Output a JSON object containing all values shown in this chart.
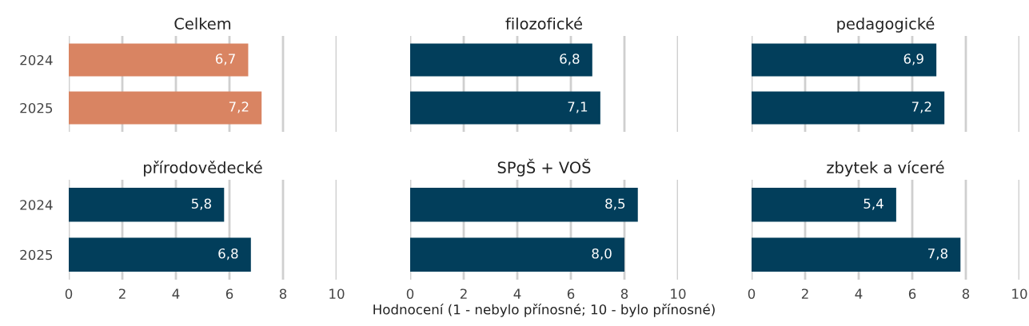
{
  "chart_data": [
    {
      "type": "bar",
      "orientation": "horizontal",
      "title": "Celkem",
      "categories": [
        "2024",
        "2025"
      ],
      "values": [
        6.7,
        7.2
      ],
      "value_labels": [
        "6,7",
        "7,2"
      ],
      "color": "#d98462",
      "xlim": [
        0,
        10
      ],
      "xticks": [
        0,
        2,
        4,
        6,
        8,
        10
      ],
      "grid": "x",
      "tick_labels": "y"
    },
    {
      "type": "bar",
      "orientation": "horizontal",
      "title": "filozofické",
      "categories": [
        "2024",
        "2025"
      ],
      "values": [
        6.8,
        7.1
      ],
      "value_labels": [
        "6,8",
        "7,1"
      ],
      "color": "#023e5b",
      "xlim": [
        0,
        10
      ],
      "xticks": [
        0,
        2,
        4,
        6,
        8,
        10
      ],
      "grid": "x",
      "tick_labels": false
    },
    {
      "type": "bar",
      "orientation": "horizontal",
      "title": "pedagogické",
      "categories": [
        "2024",
        "2025"
      ],
      "values": [
        6.9,
        7.2
      ],
      "value_labels": [
        "6,9",
        "7,2"
      ],
      "color": "#023e5b",
      "xlim": [
        0,
        10
      ],
      "xticks": [
        0,
        2,
        4,
        6,
        8,
        10
      ],
      "grid": "x",
      "tick_labels": false
    },
    {
      "type": "bar",
      "orientation": "horizontal",
      "title": "přírodovědecké",
      "categories": [
        "2024",
        "2025"
      ],
      "values": [
        5.8,
        6.8
      ],
      "value_labels": [
        "5,8",
        "6,8"
      ],
      "color": "#023e5b",
      "xlim": [
        0,
        10
      ],
      "xticks": [
        0,
        2,
        4,
        6,
        8,
        10
      ],
      "grid": "x"
    },
    {
      "type": "bar",
      "orientation": "horizontal",
      "title": "SPgŠ + VOŠ",
      "xlabel": "Hodnocení (1 - nebylo přínosné; 10 - bylo přínosné)",
      "categories": [
        "2024",
        "2025"
      ],
      "values": [
        8.5,
        8.0
      ],
      "value_labels": [
        "8,5",
        "8,0"
      ],
      "color": "#023e5b",
      "xlim": [
        0,
        10
      ],
      "xticks": [
        0,
        2,
        4,
        6,
        8,
        10
      ],
      "grid": "x",
      "tick_labels": "x"
    },
    {
      "type": "bar",
      "orientation": "horizontal",
      "title": "zbytek a víceré",
      "categories": [
        "2024",
        "2025"
      ],
      "values": [
        5.4,
        7.8
      ],
      "value_labels": [
        "5,4",
        "7,8"
      ],
      "color": "#023e5b",
      "xlim": [
        0,
        10
      ],
      "xticks": [
        0,
        2,
        4,
        6,
        8,
        10
      ],
      "grid": "x",
      "tick_labels": "x"
    }
  ]
}
